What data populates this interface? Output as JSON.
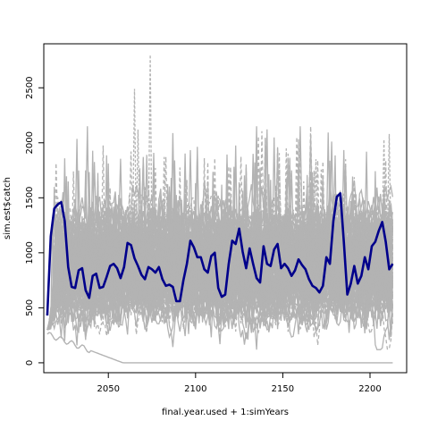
{
  "chart_data": {
    "type": "line",
    "title": "",
    "xlabel": "final.year.used + 1:simYears",
    "ylabel": "sim.est$catch",
    "xlim": [
      2013,
      2221
    ],
    "ylim": [
      -90,
      2900
    ],
    "x_start": 2015,
    "x_end": 2213,
    "x_ticks": [
      2050,
      2100,
      2150,
      2200
    ],
    "x_tick_labels": [
      "2050",
      "2100",
      "2150",
      "2200"
    ],
    "y_ticks": [
      0,
      500,
      1000,
      1500,
      2000,
      2500
    ],
    "y_tick_labels": [
      "0",
      "500",
      "1000",
      "1500",
      "2000",
      "2500"
    ],
    "grid": false,
    "legend": "none",
    "colors": {
      "simulations": "#b3b3b3",
      "highlighted": "#00008b",
      "axes": "#000000"
    },
    "highlighted_series": {
      "points": [
        [
          2015,
          430
        ],
        [
          2017,
          1150
        ],
        [
          2019,
          1400
        ],
        [
          2021,
          1440
        ],
        [
          2023,
          1460
        ],
        [
          2025,
          1290
        ],
        [
          2027,
          870
        ],
        [
          2029,
          690
        ],
        [
          2031,
          680
        ],
        [
          2033,
          840
        ],
        [
          2035,
          860
        ],
        [
          2037,
          660
        ],
        [
          2039,
          590
        ],
        [
          2041,
          790
        ],
        [
          2043,
          810
        ],
        [
          2045,
          680
        ],
        [
          2047,
          690
        ],
        [
          2049,
          780
        ],
        [
          2051,
          880
        ],
        [
          2053,
          900
        ],
        [
          2055,
          860
        ],
        [
          2057,
          770
        ],
        [
          2059,
          870
        ],
        [
          2061,
          1090
        ],
        [
          2063,
          1070
        ],
        [
          2065,
          950
        ],
        [
          2067,
          880
        ],
        [
          2069,
          800
        ],
        [
          2071,
          760
        ],
        [
          2073,
          870
        ],
        [
          2075,
          850
        ],
        [
          2077,
          820
        ],
        [
          2079,
          870
        ],
        [
          2081,
          760
        ],
        [
          2083,
          700
        ],
        [
          2085,
          710
        ],
        [
          2087,
          690
        ],
        [
          2089,
          560
        ],
        [
          2091,
          560
        ],
        [
          2093,
          750
        ],
        [
          2095,
          900
        ],
        [
          2097,
          1110
        ],
        [
          2099,
          1050
        ],
        [
          2101,
          960
        ],
        [
          2103,
          960
        ],
        [
          2105,
          850
        ],
        [
          2107,
          820
        ],
        [
          2109,
          970
        ],
        [
          2111,
          1000
        ],
        [
          2113,
          680
        ],
        [
          2115,
          600
        ],
        [
          2117,
          620
        ],
        [
          2119,
          900
        ],
        [
          2121,
          1110
        ],
        [
          2123,
          1080
        ],
        [
          2125,
          1220
        ],
        [
          2127,
          1010
        ],
        [
          2129,
          860
        ],
        [
          2131,
          1040
        ],
        [
          2133,
          900
        ],
        [
          2135,
          770
        ],
        [
          2137,
          730
        ],
        [
          2139,
          1060
        ],
        [
          2141,
          900
        ],
        [
          2143,
          880
        ],
        [
          2145,
          1030
        ],
        [
          2147,
          1080
        ],
        [
          2149,
          860
        ],
        [
          2151,
          900
        ],
        [
          2153,
          860
        ],
        [
          2155,
          790
        ],
        [
          2157,
          840
        ],
        [
          2159,
          940
        ],
        [
          2161,
          890
        ],
        [
          2163,
          850
        ],
        [
          2165,
          760
        ],
        [
          2167,
          700
        ],
        [
          2169,
          680
        ],
        [
          2171,
          640
        ],
        [
          2173,
          700
        ],
        [
          2175,
          960
        ],
        [
          2177,
          900
        ],
        [
          2179,
          1290
        ],
        [
          2181,
          1510
        ],
        [
          2183,
          1540
        ],
        [
          2185,
          1100
        ],
        [
          2187,
          620
        ],
        [
          2189,
          720
        ],
        [
          2191,
          880
        ],
        [
          2193,
          720
        ],
        [
          2195,
          790
        ],
        [
          2197,
          960
        ],
        [
          2199,
          850
        ],
        [
          2201,
          1060
        ],
        [
          2203,
          1100
        ],
        [
          2205,
          1200
        ],
        [
          2207,
          1280
        ],
        [
          2209,
          1100
        ],
        [
          2211,
          850
        ],
        [
          2213,
          900
        ]
      ]
    },
    "background_series": {
      "count": 120,
      "typical_range": [
        300,
        1700
      ]
    }
  }
}
